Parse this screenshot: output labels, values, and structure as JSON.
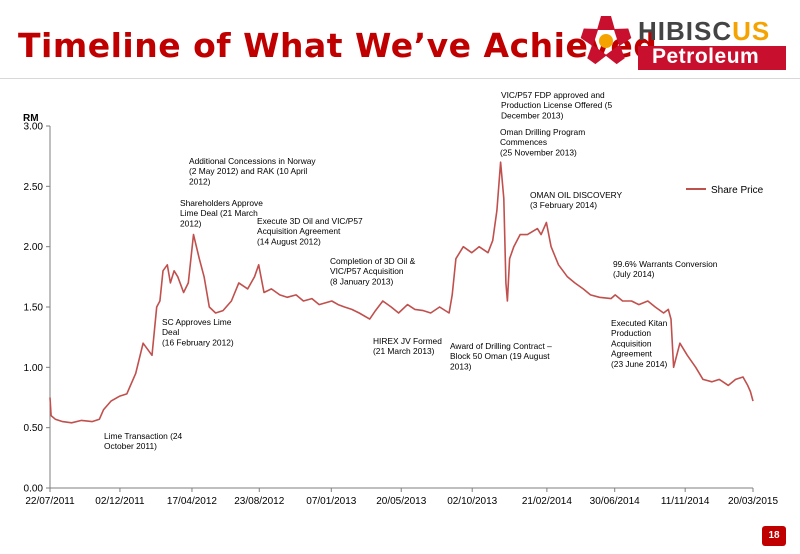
{
  "slide": {
    "title": "Timeline of What We’ve Achieved",
    "page_number": "18"
  },
  "logo": {
    "word1_lead": "H",
    "word1_rest": "IBISC",
    "word1_tail": "US",
    "word2": "Petroleum",
    "colors": {
      "red": "#c8102e",
      "orange": "#f5a300",
      "grey": "#444444"
    }
  },
  "colors": {
    "title": "#c00000",
    "series": "#c0504d",
    "badge": "#c00000"
  },
  "chart_data": {
    "type": "line",
    "ylabel": "RM",
    "ylim": [
      0,
      3.0
    ],
    "yticks": [
      "0.00",
      "0.50",
      "1.00",
      "1.50",
      "2.00",
      "2.50",
      "3.00"
    ],
    "xlim": [
      "2011-07-22",
      "2015-03-20"
    ],
    "xticks": [
      "22/07/2011",
      "02/12/2011",
      "17/04/2012",
      "23/08/2012",
      "07/01/2013",
      "20/05/2013",
      "02/10/2013",
      "21/02/2014",
      "30/06/2014",
      "11/11/2014",
      "20/03/2015"
    ],
    "grid": false,
    "legend_position": "right",
    "series": [
      {
        "name": "Share Price",
        "color": "#c0504d",
        "x": [
          "2011-07-22",
          "2011-07-24",
          "2011-08-01",
          "2011-08-15",
          "2011-09-01",
          "2011-09-20",
          "2011-10-10",
          "2011-10-24",
          "2011-11-01",
          "2011-11-15",
          "2011-12-01",
          "2011-12-15",
          "2012-01-01",
          "2012-01-15",
          "2012-02-01",
          "2012-02-10",
          "2012-02-16",
          "2012-02-22",
          "2012-03-01",
          "2012-03-07",
          "2012-03-14",
          "2012-03-21",
          "2012-04-01",
          "2012-04-10",
          "2012-04-20",
          "2012-05-01",
          "2012-05-10",
          "2012-05-20",
          "2012-06-01",
          "2012-06-15",
          "2012-07-01",
          "2012-07-15",
          "2012-08-01",
          "2012-08-14",
          "2012-08-22",
          "2012-09-01",
          "2012-09-15",
          "2012-10-01",
          "2012-10-15",
          "2012-11-01",
          "2012-11-15",
          "2012-12-01",
          "2012-12-15",
          "2013-01-08",
          "2013-01-20",
          "2013-02-01",
          "2013-02-15",
          "2013-03-01",
          "2013-03-21",
          "2013-04-01",
          "2013-04-15",
          "2013-05-01",
          "2013-05-15",
          "2013-06-01",
          "2013-06-15",
          "2013-07-01",
          "2013-07-15",
          "2013-08-01",
          "2013-08-19",
          "2013-08-25",
          "2013-09-01",
          "2013-09-15",
          "2013-10-01",
          "2013-10-15",
          "2013-11-01",
          "2013-11-10",
          "2013-11-18",
          "2013-11-25",
          "2013-12-01",
          "2013-12-05",
          "2013-12-08",
          "2013-12-12",
          "2013-12-20",
          "2014-01-01",
          "2014-01-15",
          "2014-02-03",
          "2014-02-10",
          "2014-02-20",
          "2014-03-01",
          "2014-03-15",
          "2014-04-01",
          "2014-04-15",
          "2014-05-01",
          "2014-05-15",
          "2014-06-01",
          "2014-06-23",
          "2014-07-01",
          "2014-07-15",
          "2014-08-01",
          "2014-08-15",
          "2014-09-01",
          "2014-09-15",
          "2014-10-01",
          "2014-10-10",
          "2014-10-15",
          "2014-10-20",
          "2014-11-01",
          "2014-11-15",
          "2014-12-01",
          "2014-12-15",
          "2015-01-01",
          "2015-01-15",
          "2015-02-01",
          "2015-02-15",
          "2015-03-01",
          "2015-03-10",
          "2015-03-15",
          "2015-03-20"
        ],
        "values": [
          0.75,
          0.6,
          0.57,
          0.55,
          0.54,
          0.56,
          0.55,
          0.57,
          0.65,
          0.72,
          0.76,
          0.78,
          0.95,
          1.2,
          1.1,
          1.5,
          1.55,
          1.8,
          1.85,
          1.7,
          1.8,
          1.75,
          1.62,
          1.7,
          2.1,
          1.9,
          1.75,
          1.5,
          1.45,
          1.47,
          1.55,
          1.7,
          1.65,
          1.75,
          1.85,
          1.62,
          1.65,
          1.6,
          1.58,
          1.6,
          1.55,
          1.57,
          1.52,
          1.55,
          1.52,
          1.5,
          1.48,
          1.45,
          1.4,
          1.47,
          1.55,
          1.5,
          1.45,
          1.52,
          1.48,
          1.47,
          1.45,
          1.5,
          1.45,
          1.6,
          1.9,
          2.0,
          1.95,
          2.0,
          1.95,
          2.05,
          2.3,
          2.7,
          2.4,
          1.7,
          1.55,
          1.9,
          2.0,
          2.1,
          2.1,
          2.15,
          2.1,
          2.2,
          2.0,
          1.85,
          1.75,
          1.7,
          1.65,
          1.6,
          1.58,
          1.57,
          1.6,
          1.55,
          1.55,
          1.52,
          1.55,
          1.5,
          1.45,
          1.48,
          1.4,
          1.0,
          1.2,
          1.1,
          1.0,
          0.9,
          0.88,
          0.9,
          0.85,
          0.9,
          0.92,
          0.85,
          0.8,
          0.72
        ]
      }
    ],
    "annotations": [
      {
        "lines": [
          "Lime Transaction (24",
          "October 2011)"
        ]
      },
      {
        "lines": [
          "SC Approves Lime",
          "Deal",
          "(16 February 2012)"
        ]
      },
      {
        "lines": [
          "Shareholders Approve",
          "Lime Deal (21 March",
          "2012)"
        ]
      },
      {
        "lines": [
          "Additional Concessions in Norway",
          "(2 May 2012) and RAK (10 April",
          "2012)"
        ]
      },
      {
        "lines": [
          "Execute 3D Oil and VIC/P57",
          "Acquisition Agreement",
          "(14 August 2012)"
        ]
      },
      {
        "lines": [
          "Completion of 3D Oil &",
          "VIC/P57 Acquisition",
          "(8 January 2013)"
        ]
      },
      {
        "lines": [
          "HIREX JV Formed",
          "(21 March 2013)"
        ]
      },
      {
        "lines": [
          "Award of Drilling Contract –",
          "Block 50 Oman (19 August",
          "2013)"
        ]
      },
      {
        "lines": [
          "Oman Drilling Program",
          "Commences",
          "(25 November 2013)"
        ]
      },
      {
        "lines": [
          "VIC/P57 FDP approved and",
          "Production License Offered (5",
          "December 2013)"
        ]
      },
      {
        "lines": [
          "OMAN OIL DISCOVERY",
          "(3 February 2014)"
        ]
      },
      {
        "lines": [
          "99.6% Warrants Conversion",
          "(July 2014)"
        ]
      },
      {
        "lines": [
          "Executed Kitan",
          "Production",
          "Acquisition",
          "Agreement",
          "(23 June 2014)"
        ]
      }
    ]
  }
}
